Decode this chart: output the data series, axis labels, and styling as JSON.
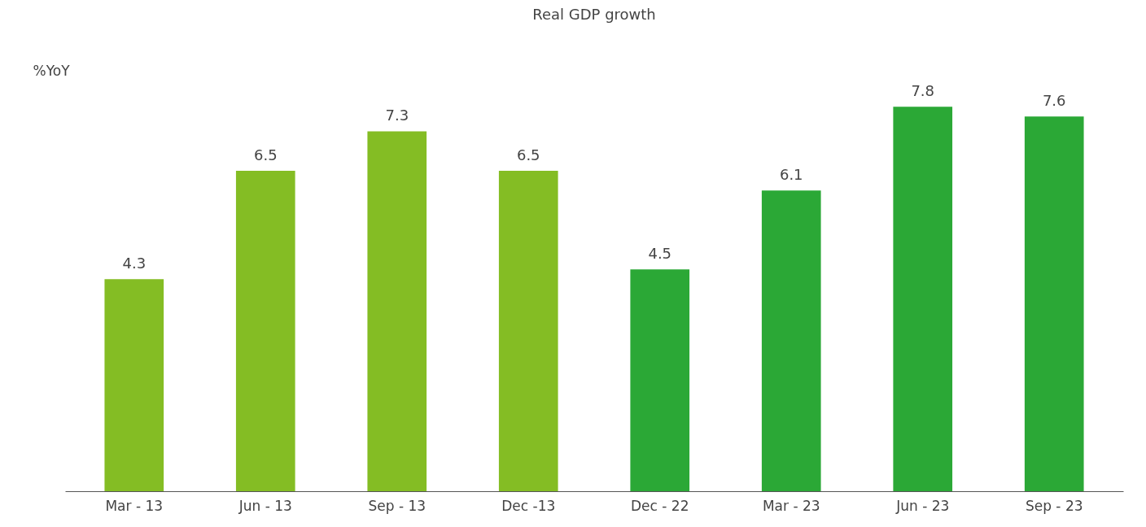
{
  "chart_data": {
    "type": "bar",
    "title": "Real GDP growth",
    "ylabel": "%YoY",
    "categories": [
      "Mar - 13",
      "Jun - 13",
      "Sep - 13",
      "Dec -13",
      "Dec - 22",
      "Mar - 23",
      "Jun - 23",
      "Sep - 23"
    ],
    "values": [
      4.3,
      6.5,
      7.3,
      6.5,
      4.5,
      6.1,
      7.8,
      7.6
    ],
    "colors": [
      "#84bd24",
      "#84bd24",
      "#84bd24",
      "#84bd24",
      "#2ba836",
      "#2ba836",
      "#2ba836",
      "#2ba836"
    ],
    "data_labels": true,
    "grid": false
  }
}
